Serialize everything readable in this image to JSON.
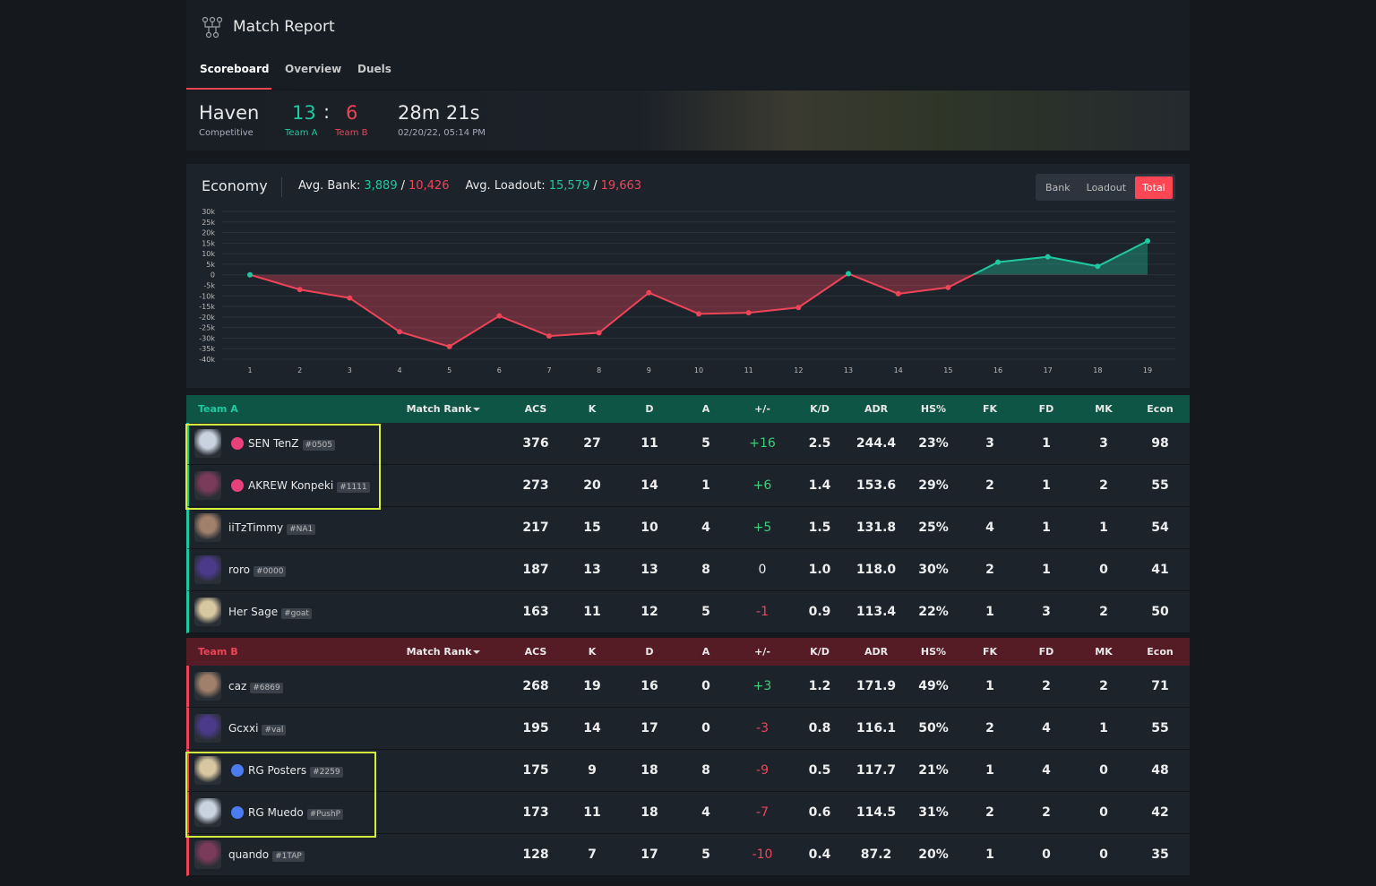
{
  "header": {
    "title": "Match Report",
    "tabs": [
      "Scoreboard",
      "Overview",
      "Duels"
    ],
    "active_tab": 0
  },
  "match": {
    "map": "Haven",
    "mode": "Competitive",
    "score_a": "13",
    "separator": ":",
    "score_b": "6",
    "team_a": "Team A",
    "team_b": "Team B",
    "duration": "28m 21s",
    "date": "02/20/22, 05:14 PM"
  },
  "economy": {
    "title": "Economy",
    "avg_bank_label": "Avg. Bank:",
    "avg_bank_a": "3,889",
    "slash": "/",
    "avg_bank_b": "10,426",
    "avg_loadout_label": "Avg. Loadout:",
    "avg_loadout_a": "15,579",
    "avg_loadout_b": "19,663",
    "toggles": [
      "Bank",
      "Loadout",
      "Total"
    ],
    "active_toggle": 2
  },
  "chart_data": {
    "type": "area",
    "categories": [
      "1",
      "2",
      "3",
      "4",
      "5",
      "6",
      "7",
      "8",
      "9",
      "10",
      "11",
      "12",
      "13",
      "14",
      "15",
      "16",
      "17",
      "18",
      "19"
    ],
    "values": [
      0,
      -7000,
      -11000,
      -27000,
      -34000,
      -19500,
      -29000,
      -27500,
      -8500,
      -18500,
      -18000,
      -15500,
      500,
      -9000,
      -6000,
      6000,
      8500,
      4000,
      16000
    ],
    "ylim": [
      -40000,
      30000
    ],
    "yticks": [
      {
        "value": 30000,
        "label": "30k"
      },
      {
        "value": 25000,
        "label": "25k"
      },
      {
        "value": 20000,
        "label": "20k"
      },
      {
        "value": 15000,
        "label": "15k"
      },
      {
        "value": 10000,
        "label": "10k"
      },
      {
        "value": 5000,
        "label": "5k"
      },
      0,
      {
        "value": -5000,
        "label": "-5k"
      },
      {
        "value": -10000,
        "label": "-10k"
      },
      {
        "value": -15000,
        "label": "-15k"
      },
      {
        "value": -20000,
        "label": "-20k"
      },
      {
        "value": -25000,
        "label": "-25k"
      },
      {
        "value": -30000,
        "label": "-30k"
      },
      {
        "value": -35000,
        "label": "-35k"
      },
      {
        "value": -40000,
        "label": "-40k"
      }
    ],
    "grid": true,
    "positive_color": "#1ec8a0",
    "negative_color": "#ee4458"
  },
  "teams": [
    {
      "name": "Team A",
      "columns": [
        "Match Rank",
        "ACS",
        "K",
        "D",
        "A",
        "+/-",
        "K/D",
        "ADR",
        "HS%",
        "FK",
        "FD",
        "MK",
        "Econ"
      ],
      "players": [
        {
          "name": "SEN TenZ",
          "tag": "#0505",
          "badge": "#e8407a",
          "stats": [
            "376",
            "27",
            "11",
            "5",
            "+16",
            "2.5",
            "244.4",
            "23%",
            "3",
            "1",
            "3",
            "98"
          ]
        },
        {
          "name": "AKREW Konpeki",
          "tag": "#1111",
          "badge": "#e8407a",
          "stats": [
            "273",
            "20",
            "14",
            "1",
            "+6",
            "1.4",
            "153.6",
            "29%",
            "2",
            "1",
            "2",
            "55"
          ]
        },
        {
          "name": "iiTzTimmy",
          "tag": "#NA1",
          "badge": null,
          "stats": [
            "217",
            "15",
            "10",
            "4",
            "+5",
            "1.5",
            "131.8",
            "25%",
            "4",
            "1",
            "1",
            "54"
          ]
        },
        {
          "name": "roro",
          "tag": "#0000",
          "badge": null,
          "stats": [
            "187",
            "13",
            "13",
            "8",
            "0",
            "1.0",
            "118.0",
            "30%",
            "2",
            "1",
            "0",
            "41"
          ]
        },
        {
          "name": "Her Sage",
          "tag": "#goat",
          "badge": null,
          "stats": [
            "163",
            "11",
            "12",
            "5",
            "-1",
            "0.9",
            "113.4",
            "22%",
            "1",
            "3",
            "2",
            "50"
          ]
        }
      ]
    },
    {
      "name": "Team B",
      "columns": [
        "Match Rank",
        "ACS",
        "K",
        "D",
        "A",
        "+/-",
        "K/D",
        "ADR",
        "HS%",
        "FK",
        "FD",
        "MK",
        "Econ"
      ],
      "players": [
        {
          "name": "caz",
          "tag": "#6869",
          "badge": null,
          "stats": [
            "268",
            "19",
            "16",
            "0",
            "+3",
            "1.2",
            "171.9",
            "49%",
            "1",
            "2",
            "2",
            "71"
          ]
        },
        {
          "name": "Gcxxi",
          "tag": "#val",
          "badge": null,
          "stats": [
            "195",
            "14",
            "17",
            "0",
            "-3",
            "0.8",
            "116.1",
            "50%",
            "2",
            "4",
            "1",
            "55"
          ]
        },
        {
          "name": "RG Posters",
          "tag": "#2259",
          "badge": "#4a7cf0",
          "stats": [
            "175",
            "9",
            "18",
            "8",
            "-9",
            "0.5",
            "117.7",
            "21%",
            "1",
            "4",
            "0",
            "48"
          ]
        },
        {
          "name": "RG Muedo",
          "tag": "#PushP",
          "badge": "#4a7cf0",
          "stats": [
            "173",
            "11",
            "18",
            "4",
            "-7",
            "0.6",
            "114.5",
            "31%",
            "2",
            "2",
            "0",
            "42"
          ]
        },
        {
          "name": "quando",
          "tag": "#1TAP",
          "badge": null,
          "stats": [
            "128",
            "7",
            "17",
            "5",
            "-10",
            "0.4",
            "87.2",
            "20%",
            "1",
            "0",
            "0",
            "35"
          ]
        }
      ]
    }
  ]
}
